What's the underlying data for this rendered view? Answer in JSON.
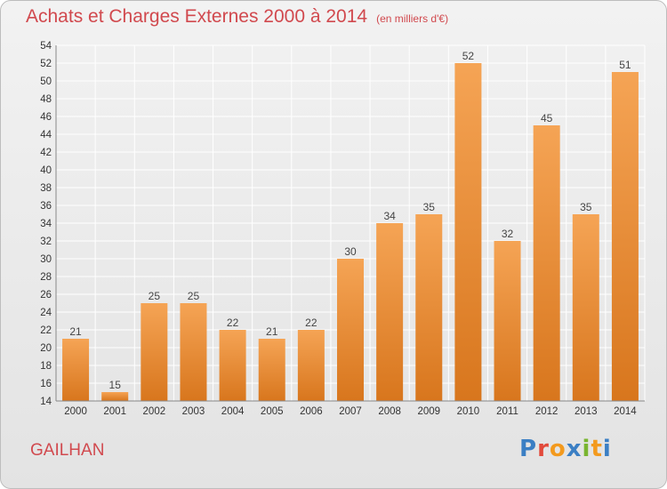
{
  "title": "Achats et Charges Externes 2000 à 2014",
  "unit": "(en milliers d'€)",
  "place": "GAILHAN",
  "brand": {
    "text": "Proxiti",
    "colors": [
      "#3b7fc4",
      "#e24a3b",
      "#f39a1e",
      "#3b7fc4",
      "#79b530",
      "#f39a1e",
      "#3b7fc4"
    ]
  },
  "colors": {
    "title": "#d1494e",
    "bar_light": "#f5a455",
    "bar_dark": "#d8761d",
    "grid": "#ffffff"
  },
  "chart_data": {
    "type": "bar",
    "title": "Achats et Charges Externes 2000 à 2014",
    "subtitle": "(en milliers d'€)",
    "categories": [
      "2000",
      "2001",
      "2002",
      "2003",
      "2004",
      "2005",
      "2006",
      "2007",
      "2008",
      "2009",
      "2010",
      "2011",
      "2012",
      "2013",
      "2014"
    ],
    "values": [
      21,
      15,
      25,
      25,
      22,
      21,
      22,
      30,
      34,
      35,
      52,
      32,
      45,
      35,
      51
    ],
    "ylim": [
      14,
      54
    ],
    "ytick_step": 2,
    "grid": true,
    "legend": "none"
  }
}
